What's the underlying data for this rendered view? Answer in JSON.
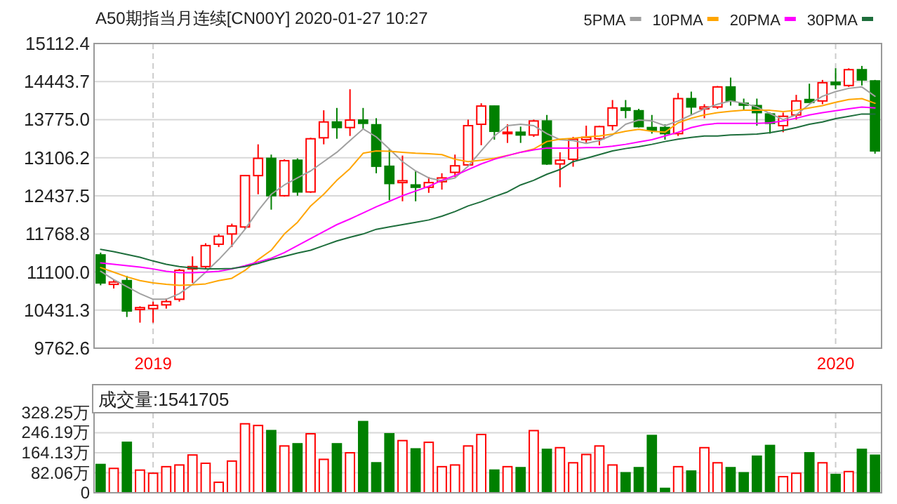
{
  "chart_data": [
    {
      "type": "candlestick",
      "title": "A50期指当月连续[CN00Y] 2020-01-27 10:27",
      "categories": [
        null,
        null,
        null,
        null,
        "2019",
        null,
        null,
        null,
        null,
        null,
        null,
        null,
        null,
        null,
        null,
        null,
        null,
        null,
        null,
        null,
        null,
        null,
        null,
        null,
        null,
        null,
        null,
        null,
        null,
        null,
        null,
        null,
        null,
        null,
        null,
        null,
        null,
        null,
        null,
        null,
        null,
        null,
        null,
        null,
        null,
        null,
        null,
        null,
        null,
        null,
        null,
        null,
        null,
        null,
        null,
        null,
        "2020",
        null,
        null,
        null
      ],
      "ohlc": [
        [
          11400,
          11441,
          10867,
          10908
        ],
        [
          10883,
          10965,
          10810,
          10924
        ],
        [
          10949,
          11031,
          10310,
          10416
        ],
        [
          10441,
          10498,
          10211,
          10474
        ],
        [
          10457,
          10580,
          10211,
          10515
        ],
        [
          10523,
          10638,
          10457,
          10580
        ],
        [
          10621,
          11154,
          10580,
          11129
        ],
        [
          11154,
          11375,
          10908,
          11195
        ],
        [
          11195,
          11605,
          11154,
          11564
        ],
        [
          11588,
          11768,
          11539,
          11728
        ],
        [
          11768,
          11949,
          11539,
          11908
        ],
        [
          11891,
          12800,
          11850,
          12793
        ],
        [
          12793,
          13342,
          12465,
          13096
        ],
        [
          13096,
          13162,
          12195,
          12440
        ],
        [
          12440,
          13080,
          12424,
          13055
        ],
        [
          13063,
          13096,
          12440,
          12506
        ],
        [
          12506,
          13457,
          12490,
          13440
        ],
        [
          13457,
          13940,
          13342,
          13735
        ],
        [
          13735,
          13981,
          13440,
          13637
        ],
        [
          13637,
          14309,
          13489,
          13768
        ],
        [
          13768,
          13981,
          13612,
          13711
        ],
        [
          13686,
          13801,
          12834,
          12957
        ],
        [
          12957,
          13260,
          12359,
          12654
        ],
        [
          12670,
          13145,
          12342,
          12703
        ],
        [
          12629,
          12875,
          12342,
          12588
        ],
        [
          12588,
          12768,
          12490,
          12670
        ],
        [
          12686,
          12834,
          12547,
          12752
        ],
        [
          12850,
          13162,
          12768,
          12965
        ],
        [
          12981,
          13776,
          12957,
          13670
        ],
        [
          13694,
          14063,
          13326,
          14014
        ],
        [
          14014,
          14022,
          13424,
          13571
        ],
        [
          13530,
          13694,
          13367,
          13555
        ],
        [
          13555,
          13653,
          13367,
          13506
        ],
        [
          13506,
          13776,
          13473,
          13752
        ],
        [
          13752,
          13858,
          12981,
          12998
        ],
        [
          12998,
          13203,
          12588,
          13063
        ],
        [
          13080,
          13473,
          12949,
          13432
        ],
        [
          13424,
          13670,
          13367,
          13465
        ],
        [
          13440,
          13670,
          13326,
          13653
        ],
        [
          13670,
          14120,
          13588,
          13981
        ],
        [
          13981,
          14120,
          13801,
          13940
        ],
        [
          13932,
          13965,
          13637,
          13653
        ],
        [
          13637,
          13858,
          13530,
          13588
        ],
        [
          13637,
          13694,
          13424,
          13530
        ],
        [
          13530,
          14243,
          13489,
          14145
        ],
        [
          14145,
          14268,
          13858,
          13998
        ],
        [
          13965,
          14047,
          13801,
          13998
        ],
        [
          13998,
          14366,
          13965,
          14350
        ],
        [
          14350,
          14514,
          14022,
          14104
        ],
        [
          14063,
          14145,
          13940,
          14030
        ],
        [
          14022,
          14145,
          13670,
          13899
        ],
        [
          13875,
          13899,
          13530,
          13711
        ],
        [
          13670,
          13899,
          13555,
          13834
        ],
        [
          13858,
          14211,
          13776,
          14104
        ],
        [
          14129,
          14407,
          14079,
          14079
        ],
        [
          14104,
          14473,
          14047,
          14424
        ],
        [
          14432,
          14678,
          14309,
          14391
        ],
        [
          14375,
          14678,
          14350,
          14653
        ],
        [
          14653,
          14719,
          14375,
          14473
        ],
        [
          14456,
          14473,
          13178,
          13227
        ]
      ],
      "colors": [
        "#008000",
        "#ff0000",
        "#008000",
        "#ff0000",
        "#ff0000",
        "#ff0000",
        "#ff0000",
        "#ff0000",
        "#ff0000",
        "#ff0000",
        "#ff0000",
        "#ff0000",
        "#ff0000",
        "#008000",
        "#ff0000",
        "#008000",
        "#ff0000",
        "#ff0000",
        "#008000",
        "#ff0000",
        "#008000",
        "#008000",
        "#008000",
        "#ff0000",
        "#008000",
        "#ff0000",
        "#ff0000",
        "#ff0000",
        "#ff0000",
        "#ff0000",
        "#008000",
        "#ff0000",
        "#008000",
        "#ff0000",
        "#008000",
        "#ff0000",
        "#ff0000",
        "#ff0000",
        "#ff0000",
        "#ff0000",
        "#008000",
        "#008000",
        "#008000",
        "#008000",
        "#ff0000",
        "#008000",
        "#ff0000",
        "#ff0000",
        "#008000",
        "#008000",
        "#008000",
        "#008000",
        "#ff0000",
        "#ff0000",
        "#008000",
        "#ff0000",
        "#008000",
        "#ff0000",
        "#008000",
        "#008000"
      ],
      "series": [
        {
          "name": "5PMA",
          "type": "line",
          "color": "#a0a0a0",
          "values": [
            11113,
            10965,
            10842,
            10720,
            10621,
            10621,
            10720,
            10883,
            11097,
            11318,
            11564,
            11850,
            12178,
            12465,
            12629,
            12752,
            12875,
            13039,
            13203,
            13407,
            13612,
            13473,
            13260,
            13039,
            12875,
            12752,
            12703,
            12752,
            12957,
            13227,
            13489,
            13670,
            13694,
            13670,
            13530,
            13424,
            13407,
            13358,
            13407,
            13506,
            13694,
            13768,
            13752,
            13670,
            13752,
            13858,
            13965,
            14047,
            14104,
            14063,
            13998,
            13883,
            13776,
            13858,
            14047,
            14186,
            14268,
            14325,
            14350,
            14186
          ]
        },
        {
          "name": "10PMA",
          "type": "line",
          "color": "#ffa500",
          "values": [
            11178,
            11097,
            11015,
            10949,
            10908,
            10883,
            10867,
            10875,
            10892,
            10949,
            10990,
            11129,
            11318,
            11482,
            11768,
            11973,
            12260,
            12465,
            12711,
            12916,
            13186,
            13227,
            13219,
            13203,
            13186,
            13178,
            13162,
            13080,
            13039,
            13063,
            13096,
            13145,
            13203,
            13260,
            13391,
            13432,
            13448,
            13473,
            13489,
            13522,
            13571,
            13604,
            13571,
            13555,
            13719,
            13801,
            13858,
            13899,
            13924,
            13940,
            13940,
            13940,
            13916,
            13940,
            13981,
            14022,
            14079,
            14129,
            14145,
            14063
          ]
        },
        {
          "name": "20PMA",
          "type": "line",
          "color": "#ff00ff",
          "values": [
            11260,
            11236,
            11211,
            11187,
            11154,
            11113,
            11088,
            11088,
            11097,
            11113,
            11154,
            11211,
            11277,
            11342,
            11441,
            11564,
            11687,
            11809,
            11932,
            12031,
            12137,
            12244,
            12342,
            12440,
            12522,
            12604,
            12711,
            12793,
            12899,
            12998,
            13080,
            13145,
            13203,
            13244,
            13276,
            13276,
            13276,
            13285,
            13285,
            13309,
            13342,
            13383,
            13424,
            13489,
            13555,
            13637,
            13686,
            13711,
            13711,
            13711,
            13711,
            13719,
            13752,
            13801,
            13858,
            13899,
            13932,
            13965,
            13998,
            13981
          ]
        },
        {
          "name": "30PMA",
          "type": "line",
          "color": "#1e6e3c",
          "values": [
            11498,
            11457,
            11408,
            11359,
            11293,
            11236,
            11195,
            11170,
            11154,
            11154,
            11162,
            11195,
            11252,
            11318,
            11375,
            11433,
            11482,
            11564,
            11646,
            11711,
            11768,
            11850,
            11891,
            11932,
            11973,
            12014,
            12080,
            12162,
            12260,
            12334,
            12424,
            12506,
            12629,
            12711,
            12817,
            12899,
            13039,
            13096,
            13162,
            13227,
            13268,
            13301,
            13342,
            13391,
            13432,
            13465,
            13489,
            13489,
            13506,
            13514,
            13522,
            13547,
            13588,
            13637,
            13694,
            13735,
            13793,
            13834,
            13875,
            13875
          ]
        }
      ],
      "ylim": [
        9762.6,
        15112.4
      ],
      "yticks": [
        9762.6,
        10431.3,
        {
          "value": 11100,
          "label": "11100.0"
        },
        11768.8,
        12437.5,
        13106.2,
        {
          "value": 13775,
          "label": "13775.0"
        },
        14443.7,
        15112.4
      ],
      "grid": true,
      "legend": "top right"
    },
    {
      "type": "bar",
      "title": "成交量:1541705",
      "categories": [
        null,
        null,
        null,
        null,
        "2019",
        null,
        null,
        null,
        null,
        null,
        null,
        null,
        null,
        null,
        null,
        null,
        null,
        null,
        null,
        null,
        null,
        null,
        null,
        null,
        null,
        null,
        null,
        null,
        null,
        null,
        null,
        null,
        null,
        null,
        null,
        null,
        null,
        null,
        null,
        null,
        null,
        null,
        null,
        null,
        null,
        null,
        null,
        null,
        null,
        null,
        null,
        null,
        null,
        null,
        null,
        null,
        "2020",
        null,
        null,
        null
      ],
      "values": [
        116,
        100,
        207,
        93,
        80,
        107,
        114,
        155,
        121,
        43,
        130,
        283,
        276,
        255,
        192,
        201,
        242,
        137,
        201,
        164,
        292,
        123,
        242,
        214,
        180,
        207,
        107,
        114,
        192,
        239,
        93,
        107,
        103,
        255,
        178,
        185,
        123,
        157,
        192,
        114,
        82,
        103,
        235,
        18,
        107,
        89,
        185,
        123,
        103,
        82,
        150,
        194,
        66,
        80,
        164,
        123,
        75,
        87,
        178,
        154
      ],
      "colors": [
        "#008000",
        "#ff0000",
        "#008000",
        "#ff0000",
        "#ff0000",
        "#ff0000",
        "#ff0000",
        "#ff0000",
        "#ff0000",
        "#ff0000",
        "#ff0000",
        "#ff0000",
        "#ff0000",
        "#008000",
        "#ff0000",
        "#008000",
        "#ff0000",
        "#ff0000",
        "#008000",
        "#ff0000",
        "#008000",
        "#008000",
        "#008000",
        "#ff0000",
        "#008000",
        "#ff0000",
        "#ff0000",
        "#ff0000",
        "#ff0000",
        "#ff0000",
        "#008000",
        "#ff0000",
        "#008000",
        "#ff0000",
        "#008000",
        "#ff0000",
        "#ff0000",
        "#ff0000",
        "#ff0000",
        "#ff0000",
        "#008000",
        "#008000",
        "#008000",
        "#008000",
        "#ff0000",
        "#008000",
        "#ff0000",
        "#ff0000",
        "#008000",
        "#008000",
        "#008000",
        "#008000",
        "#ff0000",
        "#ff0000",
        "#008000",
        "#ff0000",
        "#008000",
        "#ff0000",
        "#008000",
        "#008000"
      ],
      "ylim": [
        0,
        328.25
      ],
      "yticks": [
        0,
        {
          "value": 82.06,
          "label": "82.06万"
        },
        {
          "value": 164.13,
          "label": "164.13万"
        },
        {
          "value": 246.19,
          "label": "246.19万"
        },
        {
          "value": 328.25,
          "label": "328.25万"
        }
      ],
      "grid": true,
      "tick_labels": "y"
    }
  ]
}
